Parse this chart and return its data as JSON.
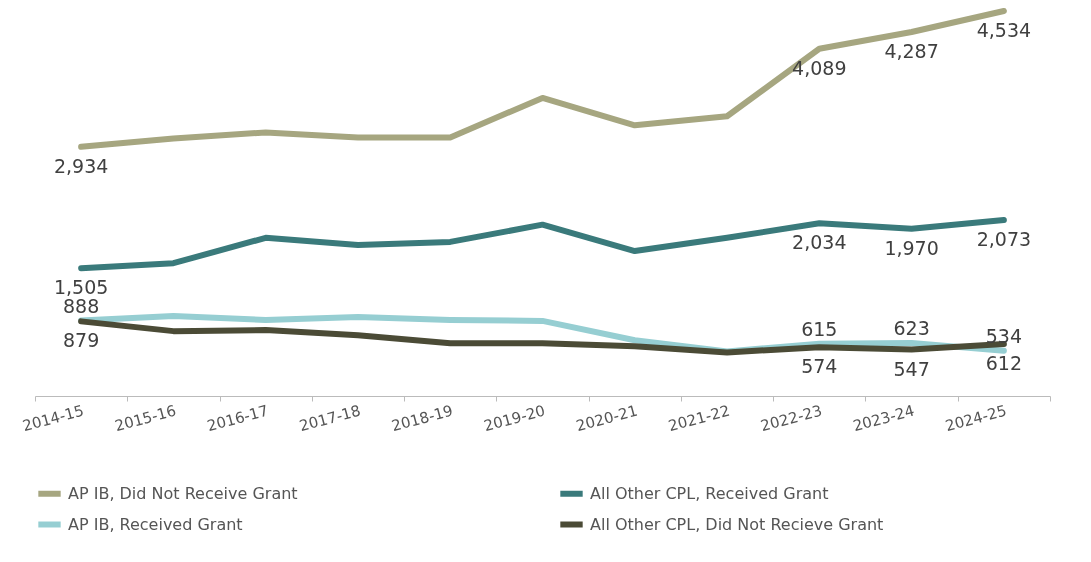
{
  "chart_data": {
    "type": "line",
    "categories": [
      "2014-15",
      "2015-16",
      "2016-17",
      "2017-18",
      "2018-19",
      "2019-20",
      "2020-21",
      "2021-22",
      "2022-23",
      "2023-24",
      "2024-25"
    ],
    "series": [
      {
        "name": "AP IB, Did Not Receive Grant",
        "color": "#a6a680",
        "values": [
          2934,
          3033,
          3104,
          3045,
          3045,
          3510,
          3188,
          3295,
          4089,
          4287,
          4534
        ],
        "value_labels": [
          "2,934",
          null,
          null,
          null,
          null,
          null,
          null,
          null,
          "4,089",
          "4,287",
          "4,534"
        ]
      },
      {
        "name": "All Other CPL, Received Grant",
        "color": "#3a7a7b",
        "values": [
          1505,
          1564,
          1863,
          1779,
          1815,
          2018,
          1707,
          1863,
          2034,
          1970,
          2073
        ],
        "value_labels": [
          "1,505",
          null,
          null,
          null,
          null,
          null,
          null,
          null,
          "2,034",
          "1,970",
          "2,073"
        ]
      },
      {
        "name": "AP IB, Received Grant",
        "color": "#96ced2",
        "values": [
          888,
          943,
          896,
          931,
          896,
          884,
          657,
          525,
          615,
          623,
          534
        ],
        "value_labels": [
          "888",
          null,
          null,
          null,
          null,
          null,
          null,
          null,
          "615",
          "623",
          "534"
        ]
      },
      {
        "name": "All Other CPL, Did Not Recieve Grant",
        "color": "#4b4b36",
        "values": [
          879,
          764,
          776,
          716,
          621,
          621,
          585,
          513,
          574,
          547,
          612
        ],
        "value_labels": [
          "879",
          null,
          null,
          null,
          null,
          null,
          null,
          null,
          "574",
          "547",
          "612"
        ]
      }
    ],
    "tick_labels": "x",
    "grid": false,
    "legend": "bottom",
    "line_style": "solid",
    "marker": "none"
  }
}
